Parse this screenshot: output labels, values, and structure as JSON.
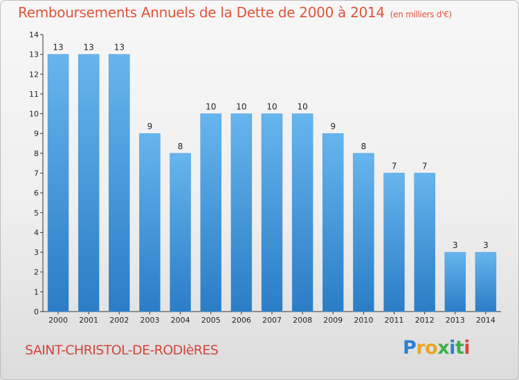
{
  "title": "Remboursements Annuels de la Dette de 2000 à 2014",
  "unit": "(en milliers d'€)",
  "place": "SAINT-CHRISTOL-DE-RODIèRES",
  "logo": {
    "letters": [
      "P",
      "r",
      "o",
      "x",
      "i",
      "t",
      "i"
    ],
    "colors": [
      "#2e7fcf",
      "#e8a62a",
      "#e8a62a",
      "#3fae49",
      "#2e7fcf",
      "#3fae49",
      "#d64a3a"
    ]
  },
  "colors": {
    "bar_top": "#66b5ee",
    "bar_bottom": "#2a7dc6",
    "text": "#222222",
    "title": "#e0533a"
  },
  "chart_data": {
    "type": "bar",
    "title": "Remboursements Annuels de la Dette de 2000 à 2014",
    "subtitle": "(en milliers d'€)",
    "categories": [
      "2000",
      "2001",
      "2002",
      "2003",
      "2004",
      "2005",
      "2006",
      "2007",
      "2008",
      "2009",
      "2010",
      "2011",
      "2012",
      "2013",
      "2014"
    ],
    "values": [
      13,
      13,
      13,
      9,
      8,
      10,
      10,
      10,
      10,
      9,
      8,
      7,
      7,
      3,
      3
    ],
    "data_labels": [
      "13",
      "13",
      "13",
      "9",
      "8",
      "10",
      "10",
      "10",
      "10",
      "9",
      "8",
      "7",
      "7",
      "3",
      "3"
    ],
    "yticks": [
      "0",
      "1",
      "2",
      "3",
      "4",
      "5",
      "6",
      "7",
      "8",
      "9",
      "10",
      "11",
      "12",
      "13",
      "14"
    ],
    "ylim": [
      0,
      14
    ],
    "xlabel": "",
    "ylabel": "",
    "grid": false,
    "legend": "none"
  }
}
